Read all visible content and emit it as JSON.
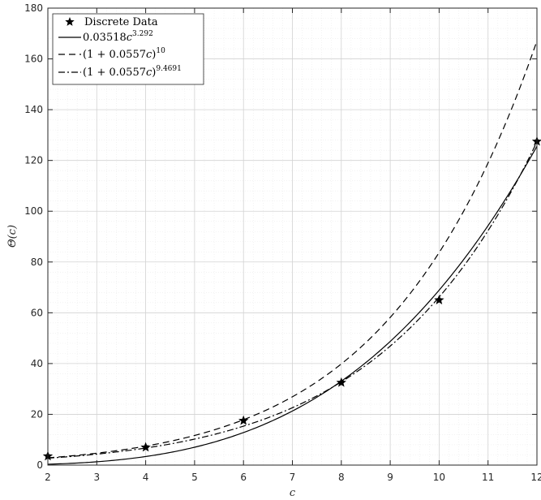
{
  "chart_data": {
    "type": "line",
    "title": "",
    "xlabel": "c",
    "ylabel": "Θ(c)",
    "xlim": [
      2,
      12
    ],
    "ylim": [
      0,
      180
    ],
    "x_ticks": [
      2,
      3,
      4,
      5,
      6,
      7,
      8,
      9,
      10,
      11,
      12
    ],
    "y_ticks": [
      0,
      20,
      40,
      60,
      80,
      100,
      120,
      140,
      160,
      180
    ],
    "grid": true,
    "minor_grid": true,
    "legend_position": "top-left",
    "discrete_data": {
      "name": "Discrete Data",
      "x": [
        2,
        4,
        6,
        8,
        10,
        12
      ],
      "y": [
        3.5,
        7,
        17.5,
        32.5,
        65,
        127.5
      ]
    },
    "series": [
      {
        "name": "0.03518c^3.292",
        "label_base": "0.03518",
        "label_var": "c",
        "label_exp": "3.292",
        "style": "solid",
        "coef": 0.03518,
        "power": 3.292,
        "kind": "power"
      },
      {
        "name": "(1 + 0.0557c)^10",
        "label_base": "(1 + 0.0557",
        "label_var": "c",
        "label_close": ")",
        "label_exp": "10",
        "style": "dashed",
        "rate": 0.0557,
        "power": 10,
        "kind": "binomial"
      },
      {
        "name": "(1 + 0.0557c)^9.4691",
        "label_base": "(1 + 0.0557",
        "label_var": "c",
        "label_close": ")",
        "label_exp": "9.4691",
        "style": "dashdot",
        "rate": 0.0557,
        "power": 9.4691,
        "kind": "binomial"
      }
    ]
  }
}
